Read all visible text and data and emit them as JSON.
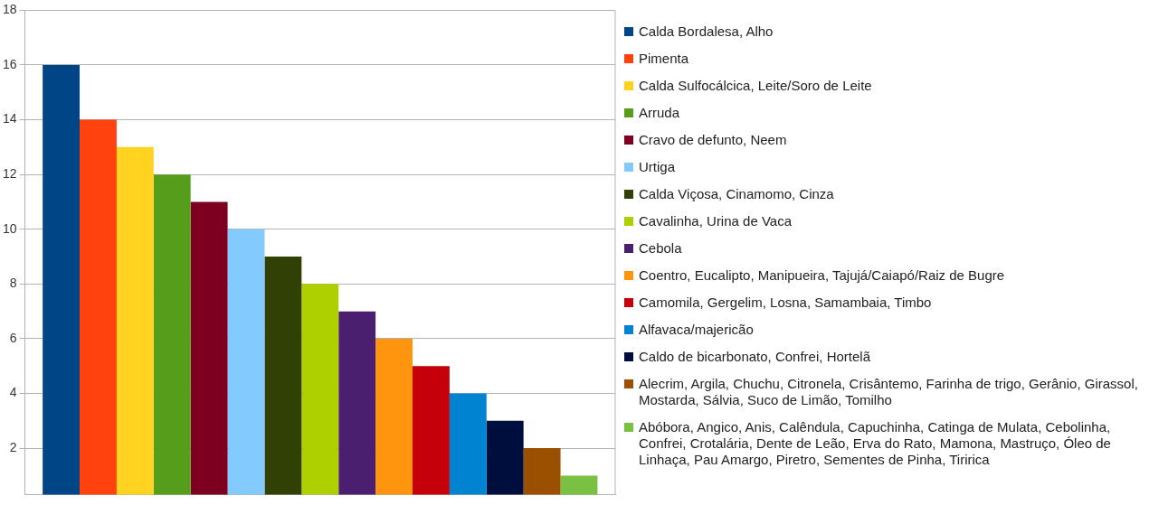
{
  "chart_data": {
    "type": "bar",
    "categories": [
      null
    ],
    "series": [
      {
        "name": "Calda Bordalesa, Alho",
        "color": "#004586",
        "values": [
          16
        ]
      },
      {
        "name": "Pimenta",
        "color": "#ff420e",
        "values": [
          14
        ]
      },
      {
        "name": "Calda Sulfocálcica, Leite/Soro de Leite",
        "color": "#ffd320",
        "values": [
          13
        ]
      },
      {
        "name": "Arruda",
        "color": "#579d1c",
        "values": [
          12
        ]
      },
      {
        "name": "Cravo de defunto, Neem",
        "color": "#7e0021",
        "values": [
          11
        ]
      },
      {
        "name": "Urtiga",
        "color": "#83caff",
        "values": [
          10
        ]
      },
      {
        "name": "Calda Viçosa, Cinamomo, Cinza",
        "color": "#314004",
        "values": [
          9
        ]
      },
      {
        "name": "Cavalinha, Urina de Vaca",
        "color": "#aecf00",
        "values": [
          8
        ]
      },
      {
        "name": "Cebola",
        "color": "#4b1f6f",
        "values": [
          7
        ]
      },
      {
        "name": "Coentro, Eucalipto, Manipueira, Tajujá/Caiapó/Raiz de Bugre",
        "color": "#ff950e",
        "values": [
          6
        ]
      },
      {
        "name": "Camomila, Gergelim, Losna, Samambaia, Timbo",
        "color": "#c5000b",
        "values": [
          5
        ]
      },
      {
        "name": "Alfavaca/majericão",
        "color": "#0084d1",
        "values": [
          4
        ]
      },
      {
        "name": "Caldo de bicarbonato, Confrei, Hortelã",
        "color": "#000e3d",
        "values": [
          3
        ]
      },
      {
        "name": "Alecrim, Argila, Chuchu, Citronela, Crisântemo, Farinha de trigo, Gerânio, Girassol, Mostarda, Sálvia, Suco de Limão, Tomilho",
        "color": "#9b5000",
        "values": [
          2
        ]
      },
      {
        "name": "Abóbora, Angico, Anis, Calêndula, Capuchinha, Catinga de Mulata, Cebolinha, Confrei, Crotalária, Dente de Leão, Erva do Rato, Mamona, Mastruço, Óleo de Linhaça, Pau Amargo, Piretro, Sementes de Pinha, Tiririca",
        "color": "#7ac143",
        "values": [
          1
        ]
      }
    ],
    "ylim": [
      0.3,
      18
    ],
    "yticks": [
      2,
      4,
      6,
      8,
      10,
      12,
      14,
      16,
      18
    ],
    "grid": "y",
    "legend": "right"
  }
}
